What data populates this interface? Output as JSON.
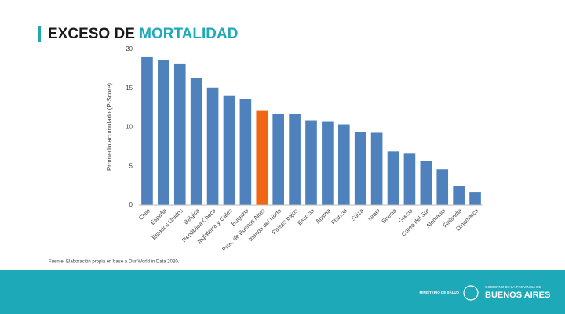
{
  "chart_data": {
    "type": "bar",
    "title": "EXCESO DE",
    "title_highlight": "MORTALIDAD",
    "ylabel": "Promedio acumulado (P-Score)",
    "source": "Fuente: Elaboración propia en base a Our World in Data 2020.",
    "categories": [
      "Chile",
      "España",
      "Estados Unidos",
      "Bélgica",
      "República Checa",
      "Inglaterra y Gales",
      "Bulgaria",
      "Prov. de Buenos Aires",
      "Irlanda del Norte",
      "Países bajos",
      "Escocia",
      "Austria",
      "Francia",
      "Suiza",
      "Israel",
      "Suecia",
      "Grecia",
      "Corea del Sur",
      "Alemania",
      "Finlandia",
      "Dinamarca"
    ],
    "values": [
      19.0,
      18.6,
      18.1,
      16.3,
      15.1,
      14.1,
      13.6,
      12.1,
      11.7,
      11.7,
      10.9,
      10.7,
      10.4,
      9.4,
      9.3,
      6.9,
      6.6,
      5.7,
      4.6,
      2.5,
      1.7
    ],
    "colors": [
      "#4f81bd",
      "#4f81bd",
      "#4f81bd",
      "#4f81bd",
      "#4f81bd",
      "#4f81bd",
      "#4f81bd",
      "#f26512",
      "#4f81bd",
      "#4f81bd",
      "#4f81bd",
      "#4f81bd",
      "#4f81bd",
      "#4f81bd",
      "#4f81bd",
      "#4f81bd",
      "#4f81bd",
      "#4f81bd",
      "#4f81bd",
      "#4f81bd",
      "#4f81bd"
    ],
    "ylim": [
      0,
      20
    ],
    "yticks": [
      0,
      5,
      10,
      15,
      20
    ],
    "grid": false
  },
  "footer": {
    "ministry": "MINISTERIO DE SALUD",
    "government": "GOBIERNO DE LA PROVINCIA DE",
    "province": "BUENOS AIRES"
  }
}
